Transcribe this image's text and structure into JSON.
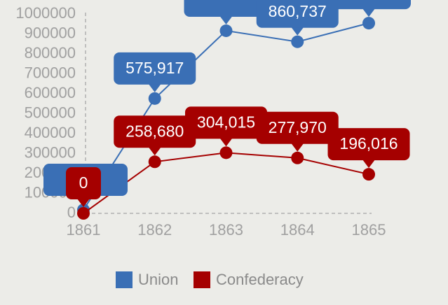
{
  "chart_data": {
    "type": "line",
    "x": [
      1861,
      1862,
      1863,
      1864,
      1865
    ],
    "series": [
      {
        "name": "Union",
        "color": "#3a6fb5",
        "values": [
          17500,
          575917,
          916000,
          860737,
          954000
        ],
        "value_labels": [
          null,
          "575,917",
          null,
          "860,737",
          null
        ]
      },
      {
        "name": "Confederacy",
        "color": "#a50000",
        "values": [
          0,
          258680,
          304015,
          277970,
          196016
        ],
        "value_labels": [
          "0",
          "258,680",
          "304,015",
          "277,970",
          "196,016"
        ]
      }
    ],
    "xlim": [
      1861,
      1865
    ],
    "xticks": [
      1861,
      1862,
      1863,
      1864,
      1865
    ],
    "ylim": [
      0,
      1000000
    ],
    "yticks": [
      0,
      100000,
      200000,
      300000,
      400000,
      500000,
      600000,
      700000,
      800000,
      900000,
      1000000
    ],
    "legend": "bottom"
  }
}
